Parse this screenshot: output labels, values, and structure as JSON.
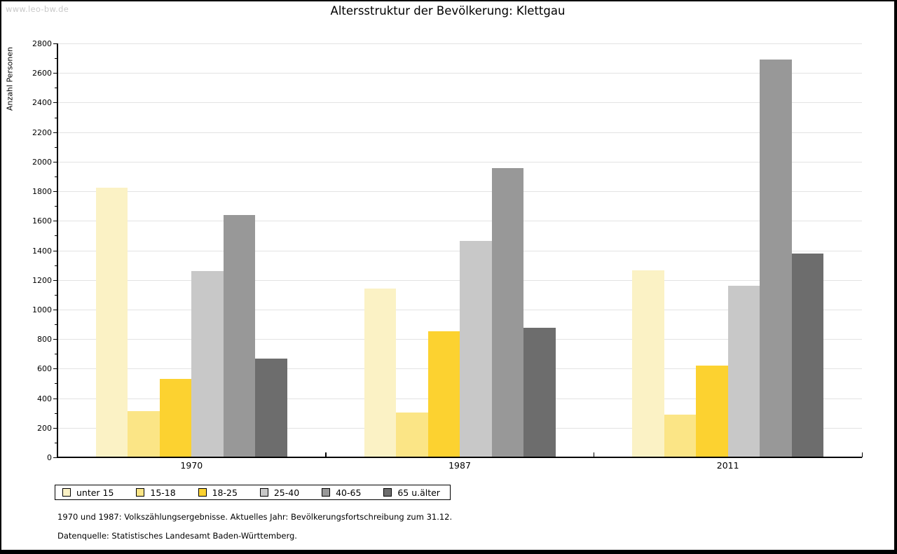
{
  "watermark": "www.leo-bw.de",
  "title": "Altersstruktur der Bevölkerung: Klettgau",
  "footnotes": [
    "1970 und 1987: Volkszählungsergebnisse. Aktuelles Jahr: Bevölkerungsfortschreibung zum 31.12.",
    "Datenquelle: Statistisches Landesamt Baden-Württemberg."
  ],
  "chart_data": {
    "type": "bar",
    "title": "Altersstruktur der Bevölkerung: Klettgau",
    "xlabel": "",
    "ylabel": "Anzahl Personen",
    "categories": [
      "1970",
      "1987",
      "2011"
    ],
    "series": [
      {
        "name": "unter 15",
        "color": "#fbf2c5",
        "values": [
          1825,
          1140,
          1265
        ]
      },
      {
        "name": "15-18",
        "color": "#fbe586",
        "values": [
          315,
          305,
          290
        ]
      },
      {
        "name": "18-25",
        "color": "#fcd230",
        "values": [
          530,
          855,
          620
        ]
      },
      {
        "name": "25-40",
        "color": "#c8c8c8",
        "values": [
          1260,
          1465,
          1160
        ]
      },
      {
        "name": "40-65",
        "color": "#989898",
        "values": [
          1640,
          1955,
          2690
        ]
      },
      {
        "name": "65 u.älter",
        "color": "#6d6d6d",
        "values": [
          670,
          875,
          1380
        ]
      }
    ],
    "ylim": [
      0,
      2800
    ],
    "ytick_step": 200,
    "yminor_step": 100,
    "grid": true,
    "legend_position": "bottom",
    "gridline_color": "#e3e3e3"
  }
}
